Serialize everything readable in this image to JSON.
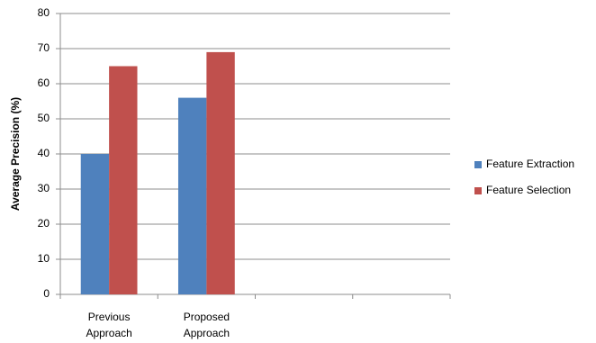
{
  "chart_data": {
    "type": "bar",
    "y_label": "Average Precision (%)",
    "categories": [
      "Previous Approach",
      "Proposed Approach",
      null,
      null
    ],
    "series": [
      {
        "name": "Feature Extraction",
        "color": "#4f81bd",
        "values": [
          40,
          56,
          null,
          null
        ]
      },
      {
        "name": "Feature Selection",
        "color": "#c0504d",
        "values": [
          65,
          69,
          null,
          null
        ]
      }
    ],
    "ylim": [
      0,
      80
    ],
    "yticks": [
      0,
      10,
      20,
      30,
      40,
      50,
      60,
      70,
      80
    ],
    "grid": true,
    "legend": "right"
  }
}
